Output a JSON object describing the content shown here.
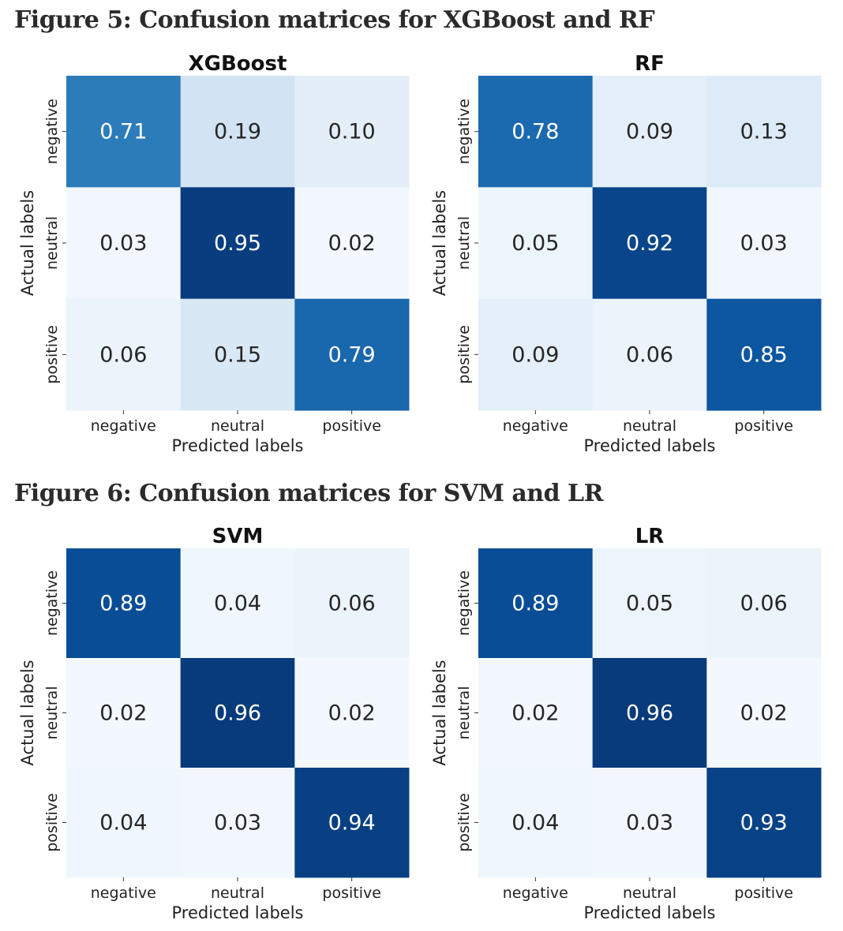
{
  "figures": [
    {
      "caption": "Figure 5: Confusion matrices for XGBoost and RF"
    },
    {
      "caption": "Figure 6: Confusion matrices for SVM and LR"
    }
  ],
  "palette": {
    "light": "#f7fbff",
    "dark": "#08306b"
  },
  "chart_data": [
    {
      "type": "heatmap",
      "title": "XGBoost",
      "xlabel": "Predicted labels",
      "ylabel": "Actual labels",
      "x_categories": [
        "negative",
        "neutral",
        "positive"
      ],
      "y_categories": [
        "negative",
        "neutral",
        "positive"
      ],
      "values": [
        [
          0.71,
          0.19,
          0.1
        ],
        [
          0.03,
          0.95,
          0.02
        ],
        [
          0.06,
          0.15,
          0.79
        ]
      ],
      "cell_labels": [
        [
          "0.71",
          "0.19",
          "0.10"
        ],
        [
          "0.03",
          "0.95",
          "0.02"
        ],
        [
          "0.06",
          "0.15",
          "0.79"
        ]
      ],
      "colormap": "Blues",
      "color_range": [
        0,
        1
      ]
    },
    {
      "type": "heatmap",
      "title": "RF",
      "xlabel": "Predicted labels",
      "ylabel": "Actual labels",
      "x_categories": [
        "negative",
        "neutral",
        "positive"
      ],
      "y_categories": [
        "negative",
        "neutral",
        "positive"
      ],
      "values": [
        [
          0.78,
          0.09,
          0.13
        ],
        [
          0.05,
          0.92,
          0.03
        ],
        [
          0.09,
          0.06,
          0.85
        ]
      ],
      "cell_labels": [
        [
          "0.78",
          "0.09",
          "0.13"
        ],
        [
          "0.05",
          "0.92",
          "0.03"
        ],
        [
          "0.09",
          "0.06",
          "0.85"
        ]
      ],
      "colormap": "Blues",
      "color_range": [
        0,
        1
      ]
    },
    {
      "type": "heatmap",
      "title": "SVM",
      "xlabel": "Predicted labels",
      "ylabel": "Actual labels",
      "x_categories": [
        "negative",
        "neutral",
        "positive"
      ],
      "y_categories": [
        "negative",
        "neutral",
        "positive"
      ],
      "values": [
        [
          0.89,
          0.04,
          0.06
        ],
        [
          0.02,
          0.96,
          0.02
        ],
        [
          0.04,
          0.03,
          0.94
        ]
      ],
      "cell_labels": [
        [
          "0.89",
          "0.04",
          "0.06"
        ],
        [
          "0.02",
          "0.96",
          "0.02"
        ],
        [
          "0.04",
          "0.03",
          "0.94"
        ]
      ],
      "colormap": "Blues",
      "color_range": [
        0,
        1
      ]
    },
    {
      "type": "heatmap",
      "title": "LR",
      "xlabel": "Predicted labels",
      "ylabel": "Actual labels",
      "x_categories": [
        "negative",
        "neutral",
        "positive"
      ],
      "y_categories": [
        "negative",
        "neutral",
        "positive"
      ],
      "values": [
        [
          0.89,
          0.05,
          0.06
        ],
        [
          0.02,
          0.96,
          0.02
        ],
        [
          0.04,
          0.03,
          0.93
        ]
      ],
      "cell_labels": [
        [
          "0.89",
          "0.05",
          "0.06"
        ],
        [
          "0.02",
          "0.96",
          "0.02"
        ],
        [
          "0.04",
          "0.03",
          "0.93"
        ]
      ],
      "colormap": "Blues",
      "color_range": [
        0,
        1
      ]
    }
  ]
}
